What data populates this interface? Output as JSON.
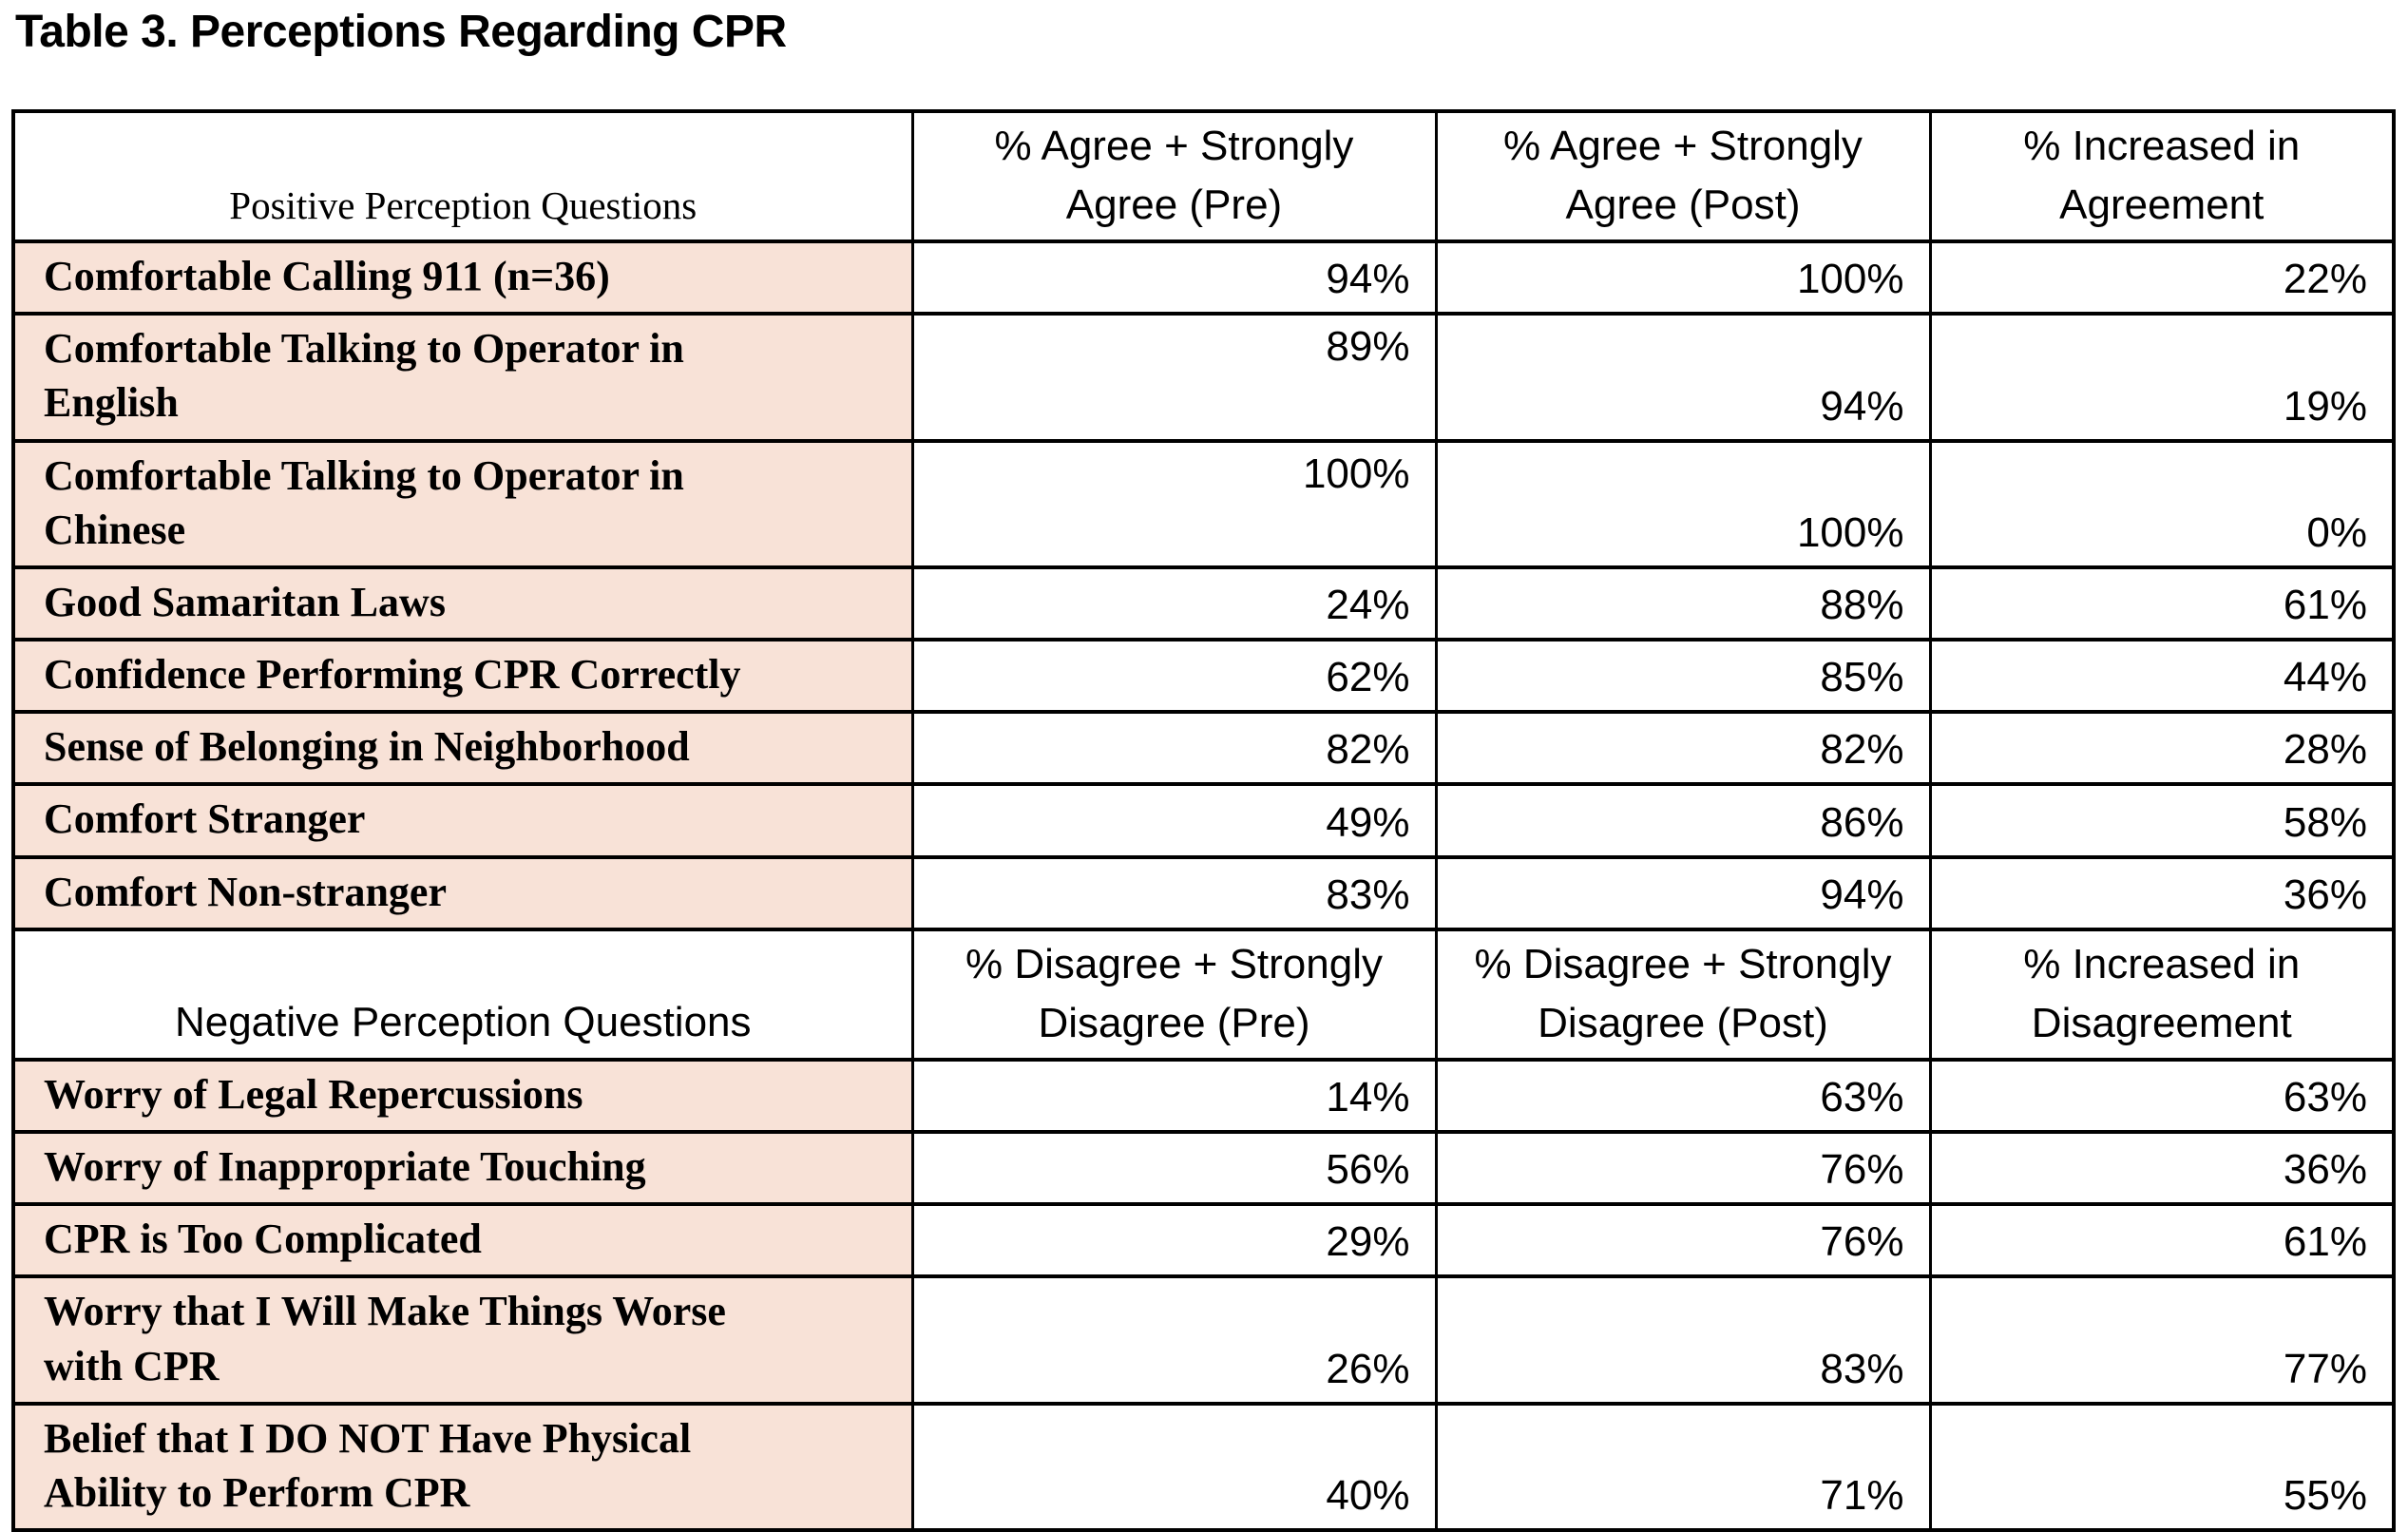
{
  "title": "Table 3. Perceptions Regarding CPR",
  "colors": {
    "row_label_background": "#f8e2d7",
    "border": "#000000",
    "page_background": "#ffffff",
    "text": "#000000"
  },
  "table": {
    "sections": [
      {
        "header": {
          "label": "Positive Perception Questions",
          "columns": [
            "% Agree + Strongly\nAgree (Pre)",
            "% Agree + Strongly\nAgree (Post)",
            "% Increased in\nAgreement"
          ]
        },
        "rows": [
          {
            "label": "Comfortable Calling 911 (n=36)",
            "values": [
              "94%",
              "100%",
              "22%"
            ]
          },
          {
            "label": "Comfortable Talking to Operator in\nEnglish",
            "values": [
              "89%",
              "94%",
              "19%"
            ],
            "valign": [
              "top",
              "bottom",
              "bottom"
            ]
          },
          {
            "label": "Comfortable Talking to Operator in\nChinese",
            "values": [
              "100%",
              "100%",
              "0%"
            ],
            "valign": [
              "top",
              "bottom",
              "bottom"
            ]
          },
          {
            "label": "Good Samaritan Laws",
            "values": [
              "24%",
              "88%",
              "61%"
            ]
          },
          {
            "label": "Confidence Performing CPR Correctly",
            "values": [
              "62%",
              "85%",
              "44%"
            ]
          },
          {
            "label": "Sense of Belonging in Neighborhood",
            "values": [
              "82%",
              "82%",
              "28%"
            ]
          },
          {
            "label": "Comfort Stranger",
            "values": [
              "49%",
              "86%",
              "58%"
            ]
          },
          {
            "label": "Comfort Non-stranger",
            "values": [
              "83%",
              "94%",
              "36%"
            ]
          }
        ]
      },
      {
        "header": {
          "label": "Negative Perception Questions",
          "columns": [
            "% Disagree + Strongly\nDisagree (Pre)",
            "% Disagree + Strongly\nDisagree (Post)",
            "% Increased in\nDisagreement"
          ]
        },
        "rows": [
          {
            "label": "Worry of Legal Repercussions",
            "values": [
              "14%",
              "63%",
              "63%"
            ]
          },
          {
            "label": "Worry of Inappropriate Touching",
            "values": [
              "56%",
              "76%",
              "36%"
            ]
          },
          {
            "label": "CPR is Too Complicated",
            "values": [
              "29%",
              "76%",
              "61%"
            ]
          },
          {
            "label": "Worry that I Will Make Things Worse\nwith CPR",
            "values": [
              "26%",
              "83%",
              "77%"
            ],
            "valign": [
              "bottom",
              "bottom",
              "bottom"
            ]
          },
          {
            "label": "Belief that I DO NOT Have Physical\nAbility to Perform CPR",
            "values": [
              "40%",
              "71%",
              "55%"
            ],
            "valign": [
              "bottom",
              "bottom",
              "bottom"
            ]
          }
        ]
      }
    ]
  }
}
